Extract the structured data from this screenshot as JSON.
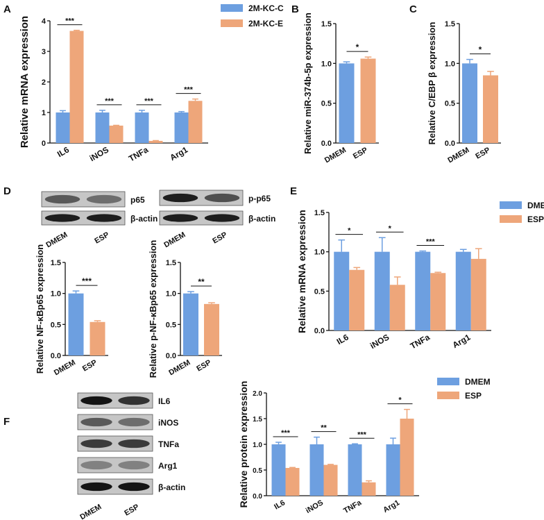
{
  "colors": {
    "control": "#6d9fe0",
    "treatment": "#eea67a",
    "axis": "#111111",
    "blot_bg": "#c6c6c6",
    "band_dark": "#1c1c1c",
    "band_mid": "#3a3a3a"
  },
  "panels": {
    "A": "A",
    "B": "B",
    "C": "C",
    "D": "D",
    "E": "E",
    "F": "F"
  },
  "chart_data": [
    {
      "id": "A",
      "type": "bar",
      "categories": [
        "IL6",
        "iNOS",
        "TNFa",
        "Arg1"
      ],
      "series": [
        {
          "name": "2M-KC-C",
          "values": [
            1.0,
            1.0,
            1.0,
            1.0
          ],
          "errors": [
            0.06,
            0.07,
            0.07,
            0.03
          ]
        },
        {
          "name": "2M-KC-E",
          "values": [
            3.67,
            0.57,
            0.07,
            1.38
          ],
          "errors": [
            0.02,
            0.01,
            0.01,
            0.06
          ]
        }
      ],
      "significance": [
        "***",
        "***",
        "***",
        "***"
      ],
      "ylabel": "Relative  mRNA expression",
      "ylim": [
        0,
        4
      ],
      "yticks": [
        "0",
        "1",
        "2",
        "3",
        "4"
      ],
      "legend": "top-right"
    },
    {
      "id": "B",
      "type": "bar",
      "categories": [
        "DMEM",
        "ESP"
      ],
      "values": [
        1.0,
        1.06
      ],
      "errors": [
        0.02,
        0.02
      ],
      "significance": [
        "*"
      ],
      "ylabel": "Relative miR-374b-5p expression",
      "ylim": [
        0,
        1.5
      ],
      "yticks": [
        "0.0",
        "0.5",
        "1.0",
        "1.5"
      ]
    },
    {
      "id": "C",
      "type": "bar",
      "categories": [
        "DMEM",
        "ESP"
      ],
      "values": [
        1.0,
        0.85
      ],
      "errors": [
        0.05,
        0.05
      ],
      "significance": [
        "*"
      ],
      "ylabel": "Relative C/EBP β expression",
      "ylim": [
        0,
        1.5
      ],
      "yticks": [
        "0.0",
        "0.5",
        "1.0",
        "1.5"
      ]
    },
    {
      "id": "D1",
      "type": "bar",
      "categories": [
        "DMEM",
        "ESP"
      ],
      "values": [
        1.0,
        0.54
      ],
      "errors": [
        0.04,
        0.02
      ],
      "significance": [
        "***"
      ],
      "ylabel": "Relative NF-κBp65 expression",
      "ylim": [
        0,
        1.5
      ],
      "yticks": [
        "0.0",
        "0.5",
        "1.0",
        "1.5"
      ]
    },
    {
      "id": "D2",
      "type": "bar",
      "categories": [
        "DMEM",
        "ESP"
      ],
      "values": [
        1.0,
        0.83
      ],
      "errors": [
        0.03,
        0.02
      ],
      "significance": [
        "**"
      ],
      "ylabel": "Relative p-NF-κBp65 expression",
      "ylim": [
        0,
        1.5
      ],
      "yticks": [
        "0.0",
        "0.5",
        "1.0",
        "1.5"
      ]
    },
    {
      "id": "E",
      "type": "bar",
      "categories": [
        "IL6",
        "iNOS",
        "TNFa",
        "Arg1"
      ],
      "series": [
        {
          "name": "DMEM",
          "values": [
            1.0,
            1.0,
            1.0,
            1.0
          ],
          "errors": [
            0.15,
            0.18,
            0.01,
            0.03
          ]
        },
        {
          "name": "ESP",
          "values": [
            0.77,
            0.58,
            0.73,
            0.91
          ],
          "errors": [
            0.03,
            0.1,
            0.01,
            0.13
          ]
        }
      ],
      "significance": [
        "*",
        "*",
        "***",
        ""
      ],
      "ylabel": "Relative  mRNA expression",
      "ylim": [
        0,
        1.5
      ],
      "yticks": [
        "0.0",
        "0.5",
        "1.0",
        "1.5"
      ],
      "legend": "top-right"
    },
    {
      "id": "F",
      "type": "bar",
      "categories": [
        "IL6",
        "iNOS",
        "TNFa",
        "Arg1"
      ],
      "series": [
        {
          "name": "DMEM",
          "values": [
            1.0,
            1.0,
            1.0,
            1.0
          ],
          "errors": [
            0.04,
            0.14,
            0.01,
            0.12
          ]
        },
        {
          "name": "ESP",
          "values": [
            0.54,
            0.6,
            0.26,
            1.5
          ],
          "errors": [
            0.01,
            0.01,
            0.03,
            0.18
          ]
        }
      ],
      "significance": [
        "***",
        "**",
        "***",
        "*"
      ],
      "ylabel": "Relative protein expression",
      "ylim": [
        0,
        2.0
      ],
      "yticks": [
        "0.0",
        "0.5",
        "1.0",
        "1.5",
        "2.0"
      ],
      "legend": "top-right"
    }
  ],
  "blots": {
    "D_left": {
      "labels": [
        "p65",
        "β-actin"
      ],
      "lanes": [
        "DMEM",
        "ESP"
      ]
    },
    "D_right": {
      "labels": [
        "p-p65",
        "β-actin"
      ],
      "lanes": [
        "DMEM",
        "ESP"
      ]
    },
    "F": {
      "labels": [
        "IL6",
        "iNOS",
        "TNFa",
        "Arg1",
        "β-actin"
      ],
      "lanes": [
        "DMEM",
        "ESP"
      ]
    }
  }
}
